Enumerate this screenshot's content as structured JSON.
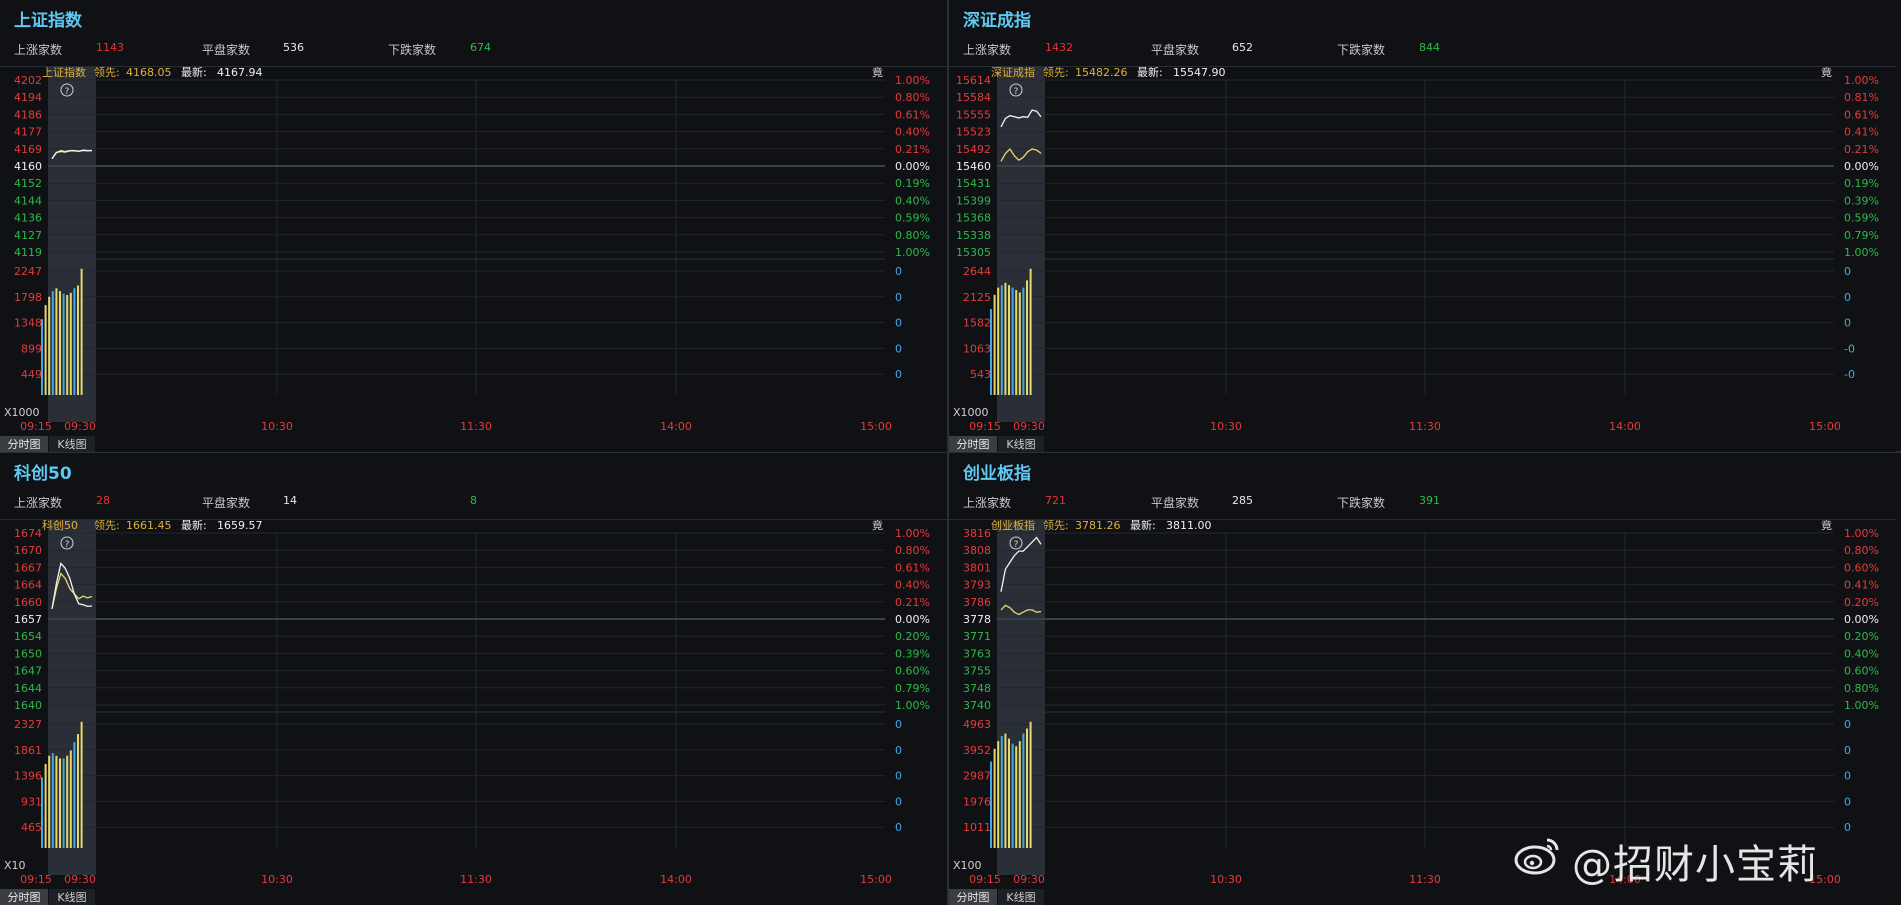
{
  "panels": [
    {
      "title": "上证指数",
      "stats": {
        "up_label": "上涨家数",
        "up": "1143",
        "flat_label": "平盘家数",
        "flat": "536",
        "down_label": "下跌家数",
        "down": "674"
      },
      "header": {
        "name": "上证指数",
        "lead_label": "领先:",
        "lead": "4168.05",
        "last_label": "最新:",
        "last": "4167.94",
        "corner": "竟"
      },
      "price_ticks": [
        "4202",
        "4194",
        "4186",
        "4177",
        "4169",
        "4160",
        "4152",
        "4144",
        "4136",
        "4127",
        "4119"
      ],
      "pct_ticks": [
        "1.00%",
        "0.80%",
        "0.61%",
        "0.40%",
        "0.21%",
        "0.00%",
        "0.19%",
        "0.40%",
        "0.59%",
        "0.80%",
        "1.00%"
      ],
      "vol_ticks": [
        "2247",
        "1798",
        "1348",
        "899",
        "449"
      ],
      "vol_right": [
        "0",
        "0",
        "0",
        "0",
        "0"
      ],
      "vol_unit": "X1000",
      "time_ticks": [
        "09:15",
        "09:30",
        "10:30",
        "11:30",
        "14:00",
        "15:00"
      ],
      "tabs": [
        "分时图",
        "K线图"
      ],
      "help_icon": "?"
    },
    {
      "title": "深证成指",
      "stats": {
        "up_label": "上涨家数",
        "up": "1432",
        "flat_label": "平盘家数",
        "flat": "652",
        "down_label": "下跌家数",
        "down": "844"
      },
      "header": {
        "name": "深证成指",
        "lead_label": "领先:",
        "lead": "15482.26",
        "last_label": "最新:",
        "last": "15547.90",
        "corner": "竟"
      },
      "price_ticks": [
        "15614",
        "15584",
        "15555",
        "15523",
        "15492",
        "15460",
        "15431",
        "15399",
        "15368",
        "15338",
        "15305"
      ],
      "pct_ticks": [
        "1.00%",
        "0.81%",
        "0.61%",
        "0.41%",
        "0.21%",
        "0.00%",
        "0.19%",
        "0.39%",
        "0.59%",
        "0.79%",
        "1.00%"
      ],
      "vol_ticks": [
        "2644",
        "2125",
        "1582",
        "1063",
        "543"
      ],
      "vol_right": [
        "0",
        "0",
        "0",
        "-0",
        "-0"
      ],
      "vol_unit": "X1000",
      "time_ticks": [
        "09:15",
        "09:30",
        "10:30",
        "11:30",
        "14:00",
        "15:00"
      ],
      "tabs": [
        "分时图",
        "K线图"
      ],
      "help_icon": "?"
    },
    {
      "title": "科创50",
      "stats": {
        "up_label": "上涨家数",
        "up": "28",
        "flat_label": "平盘家数",
        "flat": "14",
        "down_label": "",
        "down": "8"
      },
      "header": {
        "name": "科创50",
        "lead_label": "领先:",
        "lead": "1661.45",
        "last_label": "最新:",
        "last": "1659.57",
        "corner": "竟"
      },
      "price_ticks": [
        "1674",
        "1670",
        "1667",
        "1664",
        "1660",
        "1657",
        "1654",
        "1650",
        "1647",
        "1644",
        "1640"
      ],
      "pct_ticks": [
        "1.00%",
        "0.80%",
        "0.61%",
        "0.40%",
        "0.21%",
        "0.00%",
        "0.20%",
        "0.39%",
        "0.60%",
        "0.79%",
        "1.00%"
      ],
      "vol_ticks": [
        "2327",
        "1861",
        "1396",
        "931",
        "465"
      ],
      "vol_right": [
        "0",
        "0",
        "0",
        "0",
        "0"
      ],
      "vol_unit": "X10",
      "time_ticks": [
        "09:15",
        "09:30",
        "10:30",
        "11:30",
        "14:00",
        "15:00"
      ],
      "tabs": [
        "分时图",
        "K线图"
      ],
      "help_icon": "?"
    },
    {
      "title": "创业板指",
      "stats": {
        "up_label": "上涨家数",
        "up": "721",
        "flat_label": "平盘家数",
        "flat": "285",
        "down_label": "下跌家数",
        "down": "391"
      },
      "header": {
        "name": "创业板指",
        "lead_label": "领先:",
        "lead": "3781.26",
        "last_label": "最新:",
        "last": "3811.00",
        "corner": "竟"
      },
      "price_ticks": [
        "3816",
        "3808",
        "3801",
        "3793",
        "3786",
        "3778",
        "3771",
        "3763",
        "3755",
        "3748",
        "3740"
      ],
      "pct_ticks": [
        "1.00%",
        "0.80%",
        "0.60%",
        "0.41%",
        "0.20%",
        "0.00%",
        "0.20%",
        "0.40%",
        "0.60%",
        "0.80%",
        "1.00%"
      ],
      "vol_ticks": [
        "4963",
        "3952",
        "2987",
        "1976",
        "1011"
      ],
      "vol_right": [
        "0",
        "0",
        "0",
        "0",
        "0"
      ],
      "vol_unit": "X100",
      "time_ticks": [
        "09:15",
        "09:30",
        "10:30",
        "11:30",
        "14:00",
        "15:00"
      ],
      "tabs": [
        "分时图",
        "K线图"
      ],
      "help_icon": "?"
    }
  ],
  "chart_data": [
    {
      "type": "line",
      "index": "上证指数",
      "prev_close": 4160,
      "auction": [
        0,
        0.25,
        0.6,
        0.9,
        1
      ],
      "lead": [
        4164,
        4167,
        4168,
        4167.5,
        4168,
        4168,
        4167.6,
        4168.2,
        4168,
        4168.05
      ],
      "last": [
        4164,
        4167,
        4167.5,
        4167.2,
        4167.8,
        4167.9,
        4167.6,
        4168,
        4167.8,
        4167.94
      ],
      "volume": [
        1350,
        1600,
        1750,
        1850,
        1900,
        1850,
        1800,
        1780,
        1820,
        1900,
        1950,
        2247
      ]
    },
    {
      "type": "line",
      "index": "深证成指",
      "prev_close": 15460,
      "lead": [
        15468,
        15482,
        15490,
        15478,
        15470,
        15475,
        15485,
        15490,
        15488,
        15482.26
      ],
      "last": [
        15530,
        15545,
        15550,
        15548,
        15546,
        15548,
        15547,
        15560,
        15558,
        15547.9
      ],
      "volume": [
        1800,
        2100,
        2250,
        2300,
        2350,
        2300,
        2250,
        2200,
        2150,
        2250,
        2400,
        2644
      ]
    },
    {
      "type": "line",
      "index": "科创50",
      "prev_close": 1657,
      "lead": [
        1659,
        1663,
        1666,
        1665,
        1663,
        1662,
        1661,
        1661.5,
        1661.2,
        1661.45
      ],
      "last": [
        1659,
        1664,
        1668,
        1667,
        1665,
        1662,
        1660,
        1659.8,
        1659.5,
        1659.57
      ],
      "volume": [
        1300,
        1550,
        1700,
        1750,
        1700,
        1650,
        1650,
        1700,
        1800,
        1950,
        2100,
        2327
      ]
    },
    {
      "type": "line",
      "index": "创业板指",
      "prev_close": 3778,
      "lead": [
        3782,
        3784,
        3783,
        3781,
        3780,
        3781,
        3782,
        3782,
        3781,
        3781.26
      ],
      "last": [
        3790,
        3800,
        3803,
        3806,
        3808,
        3808,
        3810,
        3812,
        3814,
        3811.0
      ],
      "volume": [
        3400,
        3900,
        4200,
        4400,
        4500,
        4300,
        4100,
        4000,
        4200,
        4500,
        4700,
        4963
      ]
    }
  ]
}
